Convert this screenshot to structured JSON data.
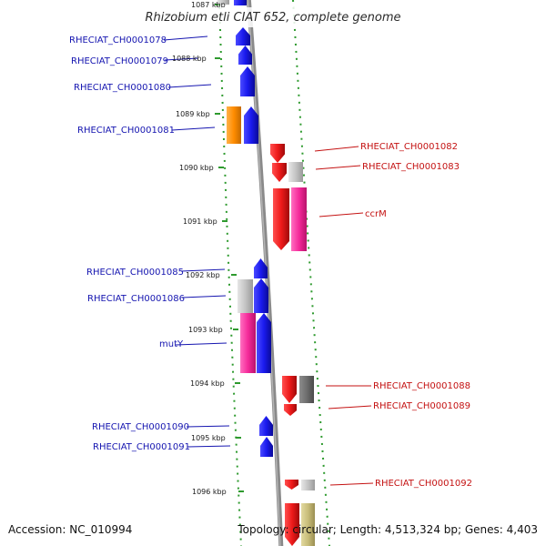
{
  "title": "Rhizobium etli CIAT 652, complete genome",
  "accession": "Accession: NC_010994",
  "topology": "Topology: circular; Length: 4,513,324 bp; Genes: 4,403",
  "colors": {
    "forward": "#1a1aee",
    "reverse": "#ee1a1a",
    "gray": "#bdbdbd",
    "dark_gray": "#6e6e6e",
    "pink": "#f52a9a",
    "orange": "#ff8c00",
    "olive": "#c8bd7a",
    "label_forward": "#1515b0",
    "label_reverse": "#c41212",
    "backbone": "#8a8a8a",
    "dots": "#2e9a2e"
  },
  "ticks": [
    {
      "label": "1087 kbp"
    },
    {
      "label": "1088 kbp"
    },
    {
      "label": "1089 kbp"
    },
    {
      "label": "1090 kbp"
    },
    {
      "label": "1091 kbp"
    },
    {
      "label": "1092 kbp"
    },
    {
      "label": "1093 kbp"
    },
    {
      "label": "1094 kbp"
    },
    {
      "label": "1095 kbp"
    },
    {
      "label": "1096 kbp"
    }
  ],
  "genes_left": [
    {
      "label": "RHECIAT_CH0001078"
    },
    {
      "label": "RHECIAT_CH0001079"
    },
    {
      "label": "RHECIAT_CH0001080"
    },
    {
      "label": "RHECIAT_CH0001081"
    },
    {
      "label": "RHECIAT_CH0001085"
    },
    {
      "label": "RHECIAT_CH0001086"
    },
    {
      "label": "mutY"
    },
    {
      "label": "RHECIAT_CH0001090"
    },
    {
      "label": "RHECIAT_CH0001091"
    }
  ],
  "genes_right": [
    {
      "label": "RHECIAT_CH0001082"
    },
    {
      "label": "RHECIAT_CH0001083"
    },
    {
      "label": "ccrM"
    },
    {
      "label": "RHECIAT_CH0001088"
    },
    {
      "label": "RHECIAT_CH0001089"
    },
    {
      "label": "RHECIAT_CH0001092"
    }
  ]
}
